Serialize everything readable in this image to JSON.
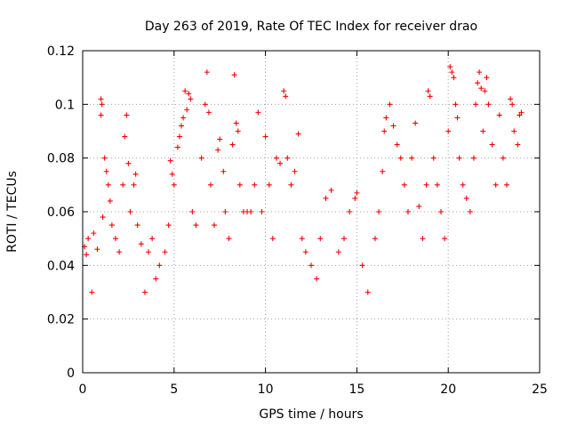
{
  "chart_data": {
    "type": "scatter",
    "title": "Day 263 of 2019, Rate Of TEC Index for receiver drao",
    "xlabel": "GPS time / hours",
    "ylabel": "ROTI / TECUs",
    "xlim": [
      0,
      25
    ],
    "ylim": [
      0,
      0.12
    ],
    "xticks": [
      0,
      5,
      10,
      15,
      20,
      25
    ],
    "yticks": [
      0,
      0.02,
      0.04,
      0.06,
      0.08,
      0.1,
      0.12
    ],
    "xtick_labels": [
      "0",
      "5",
      "10",
      "15",
      "20",
      "25"
    ],
    "ytick_labels": [
      "0",
      "0.02",
      "0.04",
      "0.06",
      "0.08",
      "0.1",
      "0.12"
    ],
    "grid": true,
    "marker": "plus",
    "color": "#ff0000",
    "series": [
      {
        "name": "",
        "points": [
          [
            0.1,
            0.047
          ],
          [
            0.2,
            0.044
          ],
          [
            0.3,
            0.05
          ],
          [
            0.5,
            0.03
          ],
          [
            0.6,
            0.052
          ],
          [
            0.8,
            0.046
          ],
          [
            1.0,
            0.102
          ],
          [
            1.05,
            0.1
          ],
          [
            1.0,
            0.096
          ],
          [
            1.2,
            0.08
          ],
          [
            1.3,
            0.075
          ],
          [
            1.4,
            0.07
          ],
          [
            1.5,
            0.064
          ],
          [
            1.1,
            0.058
          ],
          [
            1.6,
            0.055
          ],
          [
            1.8,
            0.05
          ],
          [
            2.0,
            0.045
          ],
          [
            2.2,
            0.07
          ],
          [
            2.3,
            0.088
          ],
          [
            2.4,
            0.096
          ],
          [
            2.5,
            0.078
          ],
          [
            2.6,
            0.06
          ],
          [
            2.8,
            0.07
          ],
          [
            2.9,
            0.074
          ],
          [
            3.0,
            0.055
          ],
          [
            3.2,
            0.048
          ],
          [
            3.4,
            0.03
          ],
          [
            3.6,
            0.045
          ],
          [
            3.8,
            0.05
          ],
          [
            4.0,
            0.035
          ],
          [
            4.2,
            0.04
          ],
          [
            4.5,
            0.045
          ],
          [
            4.7,
            0.055
          ],
          [
            4.8,
            0.079
          ],
          [
            4.9,
            0.074
          ],
          [
            5.0,
            0.07
          ],
          [
            5.2,
            0.084
          ],
          [
            5.3,
            0.088
          ],
          [
            5.4,
            0.092
          ],
          [
            5.5,
            0.095
          ],
          [
            5.6,
            0.105
          ],
          [
            5.7,
            0.098
          ],
          [
            5.8,
            0.104
          ],
          [
            5.9,
            0.102
          ],
          [
            6.0,
            0.06
          ],
          [
            6.2,
            0.055
          ],
          [
            6.5,
            0.08
          ],
          [
            6.7,
            0.1
          ],
          [
            6.8,
            0.112
          ],
          [
            6.9,
            0.097
          ],
          [
            7.0,
            0.07
          ],
          [
            7.2,
            0.055
          ],
          [
            7.4,
            0.083
          ],
          [
            7.5,
            0.087
          ],
          [
            7.7,
            0.075
          ],
          [
            7.8,
            0.06
          ],
          [
            8.0,
            0.05
          ],
          [
            8.2,
            0.085
          ],
          [
            8.3,
            0.111
          ],
          [
            8.4,
            0.093
          ],
          [
            8.5,
            0.09
          ],
          [
            8.6,
            0.07
          ],
          [
            8.8,
            0.06
          ],
          [
            9.0,
            0.06
          ],
          [
            9.2,
            0.06
          ],
          [
            9.4,
            0.07
          ],
          [
            9.6,
            0.097
          ],
          [
            9.8,
            0.06
          ],
          [
            10.0,
            0.088
          ],
          [
            10.2,
            0.07
          ],
          [
            10.4,
            0.05
          ],
          [
            10.6,
            0.08
          ],
          [
            10.8,
            0.078
          ],
          [
            11.0,
            0.105
          ],
          [
            11.1,
            0.103
          ],
          [
            11.2,
            0.08
          ],
          [
            11.4,
            0.07
          ],
          [
            11.6,
            0.075
          ],
          [
            11.8,
            0.089
          ],
          [
            12.0,
            0.05
          ],
          [
            12.2,
            0.045
          ],
          [
            12.5,
            0.04
          ],
          [
            12.8,
            0.035
          ],
          [
            13.0,
            0.05
          ],
          [
            13.3,
            0.065
          ],
          [
            13.6,
            0.068
          ],
          [
            14.0,
            0.045
          ],
          [
            14.3,
            0.05
          ],
          [
            14.6,
            0.06
          ],
          [
            14.9,
            0.065
          ],
          [
            15.0,
            0.067
          ],
          [
            15.3,
            0.04
          ],
          [
            15.6,
            0.03
          ],
          [
            16.0,
            0.05
          ],
          [
            16.2,
            0.06
          ],
          [
            16.4,
            0.075
          ],
          [
            16.5,
            0.09
          ],
          [
            16.6,
            0.095
          ],
          [
            16.8,
            0.1
          ],
          [
            17.0,
            0.092
          ],
          [
            17.2,
            0.085
          ],
          [
            17.4,
            0.08
          ],
          [
            17.6,
            0.07
          ],
          [
            17.8,
            0.06
          ],
          [
            18.0,
            0.08
          ],
          [
            18.2,
            0.093
          ],
          [
            18.4,
            0.062
          ],
          [
            18.6,
            0.05
          ],
          [
            18.8,
            0.07
          ],
          [
            18.9,
            0.105
          ],
          [
            19.0,
            0.103
          ],
          [
            19.2,
            0.08
          ],
          [
            19.4,
            0.07
          ],
          [
            19.6,
            0.06
          ],
          [
            19.8,
            0.05
          ],
          [
            20.0,
            0.09
          ],
          [
            20.1,
            0.114
          ],
          [
            20.2,
            0.112
          ],
          [
            20.3,
            0.11
          ],
          [
            20.4,
            0.1
          ],
          [
            20.5,
            0.095
          ],
          [
            20.6,
            0.08
          ],
          [
            20.8,
            0.07
          ],
          [
            21.0,
            0.065
          ],
          [
            21.2,
            0.06
          ],
          [
            21.4,
            0.08
          ],
          [
            21.5,
            0.1
          ],
          [
            21.6,
            0.108
          ],
          [
            21.7,
            0.112
          ],
          [
            21.8,
            0.106
          ],
          [
            21.9,
            0.09
          ],
          [
            22.0,
            0.105
          ],
          [
            22.1,
            0.11
          ],
          [
            22.2,
            0.1
          ],
          [
            22.4,
            0.085
          ],
          [
            22.6,
            0.07
          ],
          [
            22.8,
            0.096
          ],
          [
            23.0,
            0.08
          ],
          [
            23.2,
            0.07
          ],
          [
            23.4,
            0.102
          ],
          [
            23.5,
            0.1
          ],
          [
            23.6,
            0.09
          ],
          [
            23.8,
            0.085
          ],
          [
            23.9,
            0.096
          ],
          [
            24.0,
            0.097
          ]
        ]
      }
    ]
  }
}
